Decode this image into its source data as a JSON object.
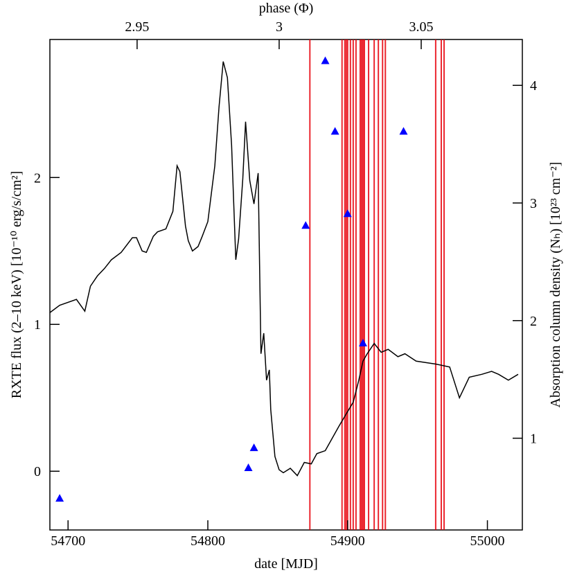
{
  "chart_data": {
    "type": "line",
    "xlabel": "date [MJD]",
    "ylabel": "RXTE flux (2–10 keV) [10⁻¹⁰ erg/s/cm²]",
    "y2label": "Absorption column density (Nₕ) [10²³ cm⁻²]",
    "x2label": "phase (Φ)",
    "xlim": [
      54687,
      55025
    ],
    "xticks": [
      54700,
      54800,
      54900,
      55000
    ],
    "x2lim": [
      2.9193,
      3.0856
    ],
    "x2ticks": [
      2.95,
      3,
      3.05
    ],
    "ylim": [
      -0.4,
      2.94
    ],
    "yticks": [
      0,
      1,
      2
    ],
    "y2lim": [
      0.22,
      4.39
    ],
    "y2ticks": [
      1,
      2,
      3,
      4
    ],
    "grid": false,
    "series": [
      {
        "color": "#000000",
        "x": [
          54687,
          54694,
          54706,
          54712,
          54716,
          54721,
          54726,
          54731,
          54738,
          54746,
          54749,
          54753,
          54756,
          54761,
          54764,
          54770,
          54775,
          54778,
          54780,
          54784,
          54786,
          54789,
          54793,
          54796,
          54800,
          54805,
          54808,
          54811,
          54814,
          54817,
          54820,
          54822,
          54825,
          54827,
          54830,
          54833,
          54836,
          54838,
          54840,
          54842,
          54844,
          54845,
          54848,
          54851,
          54854,
          54859,
          54864,
          54869,
          54874,
          54878,
          54884,
          54894,
          54904,
          54908,
          54911,
          54914,
          54919,
          54924,
          54929,
          54936,
          54941,
          54949,
          54963,
          54973,
          54980,
          54987,
          54996,
          55003,
          55008,
          55015,
          55022
        ],
        "values": [
          1.08,
          1.13,
          1.17,
          1.09,
          1.26,
          1.33,
          1.38,
          1.44,
          1.49,
          1.59,
          1.59,
          1.5,
          1.49,
          1.6,
          1.63,
          1.65,
          1.77,
          2.08,
          2.04,
          1.67,
          1.57,
          1.5,
          1.53,
          1.6,
          1.7,
          2.08,
          2.48,
          2.79,
          2.68,
          2.22,
          1.44,
          1.58,
          1.99,
          2.38,
          1.98,
          1.82,
          2.03,
          0.8,
          0.94,
          0.62,
          0.69,
          0.42,
          0.1,
          0.01,
          -0.01,
          0.02,
          -0.03,
          0.06,
          0.05,
          0.12,
          0.14,
          0.31,
          0.47,
          0.62,
          0.75,
          0.8,
          0.87,
          0.81,
          0.83,
          0.78,
          0.8,
          0.75,
          0.73,
          0.71,
          0.5,
          0.64,
          0.66,
          0.68,
          0.66,
          0.62,
          0.66
        ]
      },
      {
        "color": "#0000ff",
        "axis": "y2",
        "marker": "triangle",
        "x": [
          54694,
          54829,
          54833,
          54870,
          54884,
          54891,
          54900,
          54911,
          54940
        ],
        "values": [
          0.49,
          0.75,
          0.92,
          2.81,
          4.21,
          3.61,
          2.91,
          1.81,
          3.61
        ]
      }
    ],
    "vlines": {
      "color": "#e8000b",
      "x": [
        54873,
        54896,
        54898,
        54899,
        54900,
        54902,
        54904,
        54906,
        54909,
        54910,
        54911,
        54912,
        54915,
        54919,
        54922,
        54925,
        54927,
        54963,
        54967,
        54969
      ]
    }
  }
}
